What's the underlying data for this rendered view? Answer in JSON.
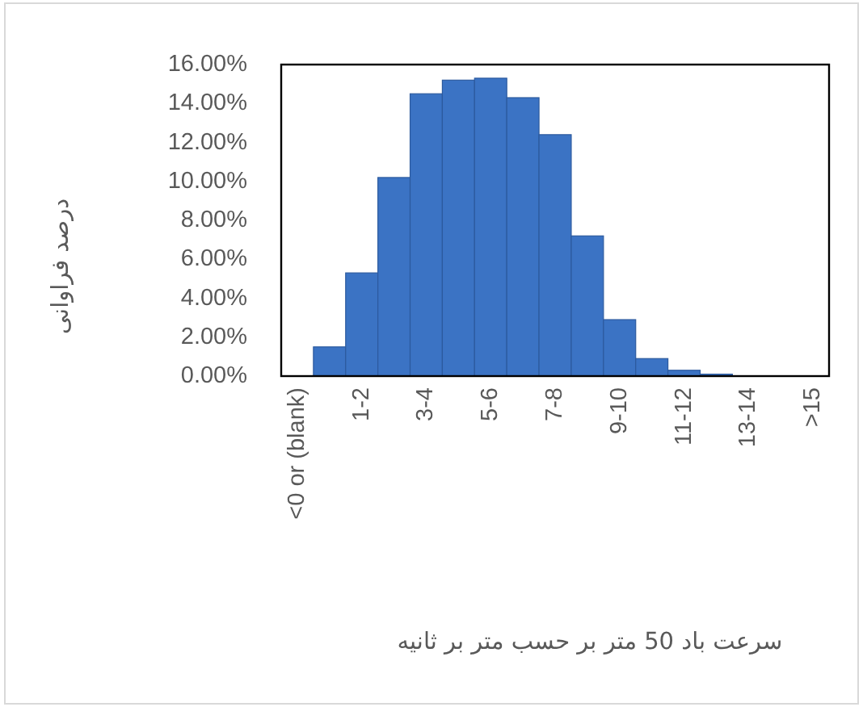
{
  "chart_data": {
    "type": "bar",
    "categories": [
      "<0 or (blank)",
      null,
      "1-2",
      null,
      "3-4",
      null,
      "5-6",
      null,
      "7-8",
      null,
      "9-10",
      null,
      "11-12",
      null,
      "13-14",
      null,
      ">15"
    ],
    "values": [
      0,
      1.5,
      5.3,
      10.2,
      14.5,
      15.2,
      15.3,
      14.3,
      12.4,
      7.2,
      2.9,
      0.9,
      0.3,
      0.1,
      0,
      0,
      0
    ],
    "color": "#3b73c4",
    "xlabel": "سرعت باد 50 متر بر حسب متر بر ثانیه",
    "ylabel": "درصد فراوانی",
    "ylim": [
      0,
      16
    ],
    "yticks": [
      {
        "value": 0,
        "label": "0.00%"
      },
      {
        "value": 2,
        "label": "2.00%"
      },
      {
        "value": 4,
        "label": "4.00%"
      },
      {
        "value": 6,
        "label": "6.00%"
      },
      {
        "value": 8,
        "label": "8.00%"
      },
      {
        "value": 10,
        "label": "10.00%"
      },
      {
        "value": 12,
        "label": "12.00%"
      },
      {
        "value": 14,
        "label": "14.00%"
      },
      {
        "value": 16,
        "label": "16.00%"
      }
    ]
  }
}
